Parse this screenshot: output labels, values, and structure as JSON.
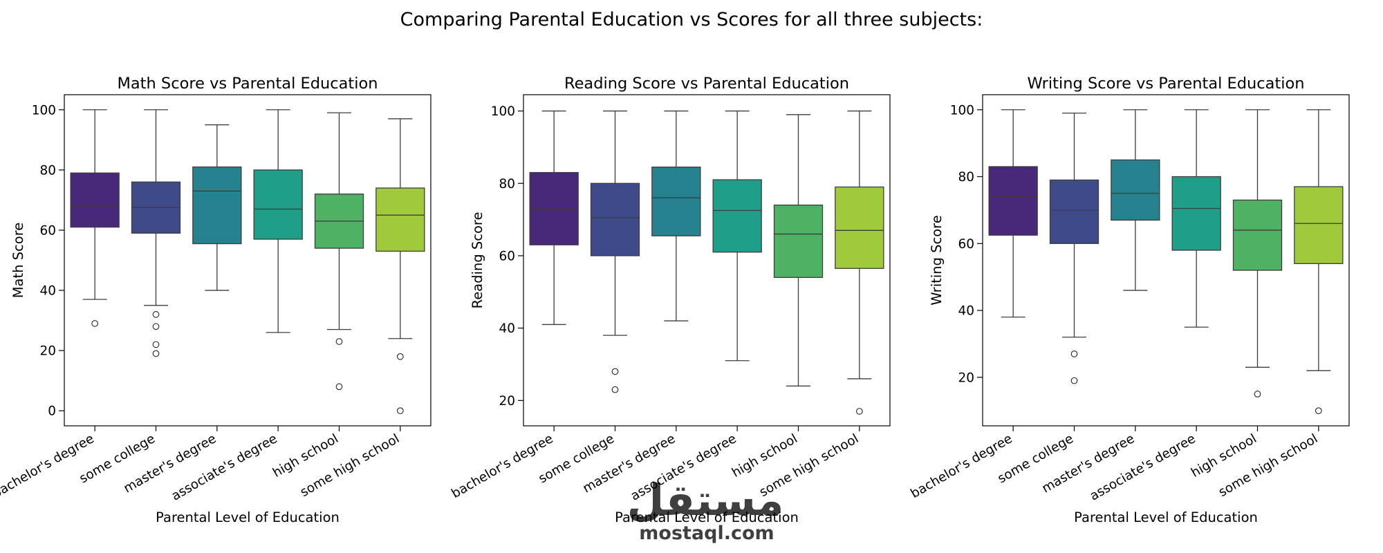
{
  "suptitle": "Comparing Parental Education vs Scores for all three subjects:",
  "watermark": {
    "logo_text": "مستقل",
    "site_text": "mostaql.com"
  },
  "palette": [
    "#482878",
    "#3E4A89",
    "#26828E",
    "#1F9E89",
    "#4FB163",
    "#A0C93C"
  ],
  "chart_data": [
    {
      "type": "box",
      "title": "Math Score vs Parental Education",
      "xlabel": "Parental Level of Education",
      "ylabel": "Math Score",
      "ylim": [
        -5,
        105
      ],
      "yticks": [
        0,
        20,
        40,
        60,
        80,
        100
      ],
      "categories": [
        "bachelor's degree",
        "some college",
        "master's degree",
        "associate's degree",
        "high school",
        "some high school"
      ],
      "boxes": [
        {
          "whislo": 37,
          "q1": 61,
          "med": 68,
          "q3": 79,
          "whishi": 100,
          "fliers": [
            29
          ]
        },
        {
          "whislo": 35,
          "q1": 59,
          "med": 67.5,
          "q3": 76,
          "whishi": 100,
          "fliers": [
            32,
            28,
            22,
            19
          ]
        },
        {
          "whislo": 40,
          "q1": 55.5,
          "med": 73,
          "q3": 81,
          "whishi": 95,
          "fliers": []
        },
        {
          "whislo": 26,
          "q1": 57,
          "med": 67,
          "q3": 80,
          "whishi": 100,
          "fliers": []
        },
        {
          "whislo": 27,
          "q1": 54,
          "med": 63,
          "q3": 72,
          "whishi": 99,
          "fliers": [
            23,
            8
          ]
        },
        {
          "whislo": 24,
          "q1": 53,
          "med": 65,
          "q3": 74,
          "whishi": 97,
          "fliers": [
            18,
            0
          ]
        }
      ]
    },
    {
      "type": "box",
      "title": "Reading Score vs Parental Education",
      "xlabel": "Parental Level of Education",
      "ylabel": "Reading Score",
      "ylim": [
        13,
        104.5
      ],
      "yticks": [
        20,
        40,
        60,
        80,
        100
      ],
      "categories": [
        "bachelor's degree",
        "some college",
        "master's degree",
        "associate's degree",
        "high school",
        "some high school"
      ],
      "boxes": [
        {
          "whislo": 41,
          "q1": 63,
          "med": 73,
          "q3": 83,
          "whishi": 100,
          "fliers": []
        },
        {
          "whislo": 38,
          "q1": 60,
          "med": 70.5,
          "q3": 80,
          "whishi": 100,
          "fliers": [
            28,
            23
          ]
        },
        {
          "whislo": 42,
          "q1": 65.5,
          "med": 76,
          "q3": 84.5,
          "whishi": 100,
          "fliers": []
        },
        {
          "whislo": 31,
          "q1": 61,
          "med": 72.5,
          "q3": 81,
          "whishi": 100,
          "fliers": []
        },
        {
          "whislo": 24,
          "q1": 54,
          "med": 66,
          "q3": 74,
          "whishi": 99,
          "fliers": []
        },
        {
          "whislo": 26,
          "q1": 56.5,
          "med": 67,
          "q3": 79,
          "whishi": 100,
          "fliers": [
            17
          ]
        }
      ]
    },
    {
      "type": "box",
      "title": "Writing Score vs Parental Education",
      "xlabel": "Parental Level of Education",
      "ylabel": "Writing Score",
      "ylim": [
        5.5,
        104.5
      ],
      "yticks": [
        20,
        40,
        60,
        80,
        100
      ],
      "categories": [
        "bachelor's degree",
        "some college",
        "master's degree",
        "associate's degree",
        "high school",
        "some high school"
      ],
      "boxes": [
        {
          "whislo": 38,
          "q1": 62.5,
          "med": 74,
          "q3": 83,
          "whishi": 100,
          "fliers": []
        },
        {
          "whislo": 32,
          "q1": 60,
          "med": 70,
          "q3": 79,
          "whishi": 99,
          "fliers": [
            27,
            19
          ]
        },
        {
          "whislo": 46,
          "q1": 67,
          "med": 75,
          "q3": 85,
          "whishi": 100,
          "fliers": []
        },
        {
          "whislo": 35,
          "q1": 58,
          "med": 70.5,
          "q3": 80,
          "whishi": 100,
          "fliers": []
        },
        {
          "whislo": 23,
          "q1": 52,
          "med": 64,
          "q3": 73,
          "whishi": 100,
          "fliers": [
            15
          ]
        },
        {
          "whislo": 22,
          "q1": 54,
          "med": 66,
          "q3": 77,
          "whishi": 100,
          "fliers": [
            10
          ]
        }
      ]
    }
  ]
}
